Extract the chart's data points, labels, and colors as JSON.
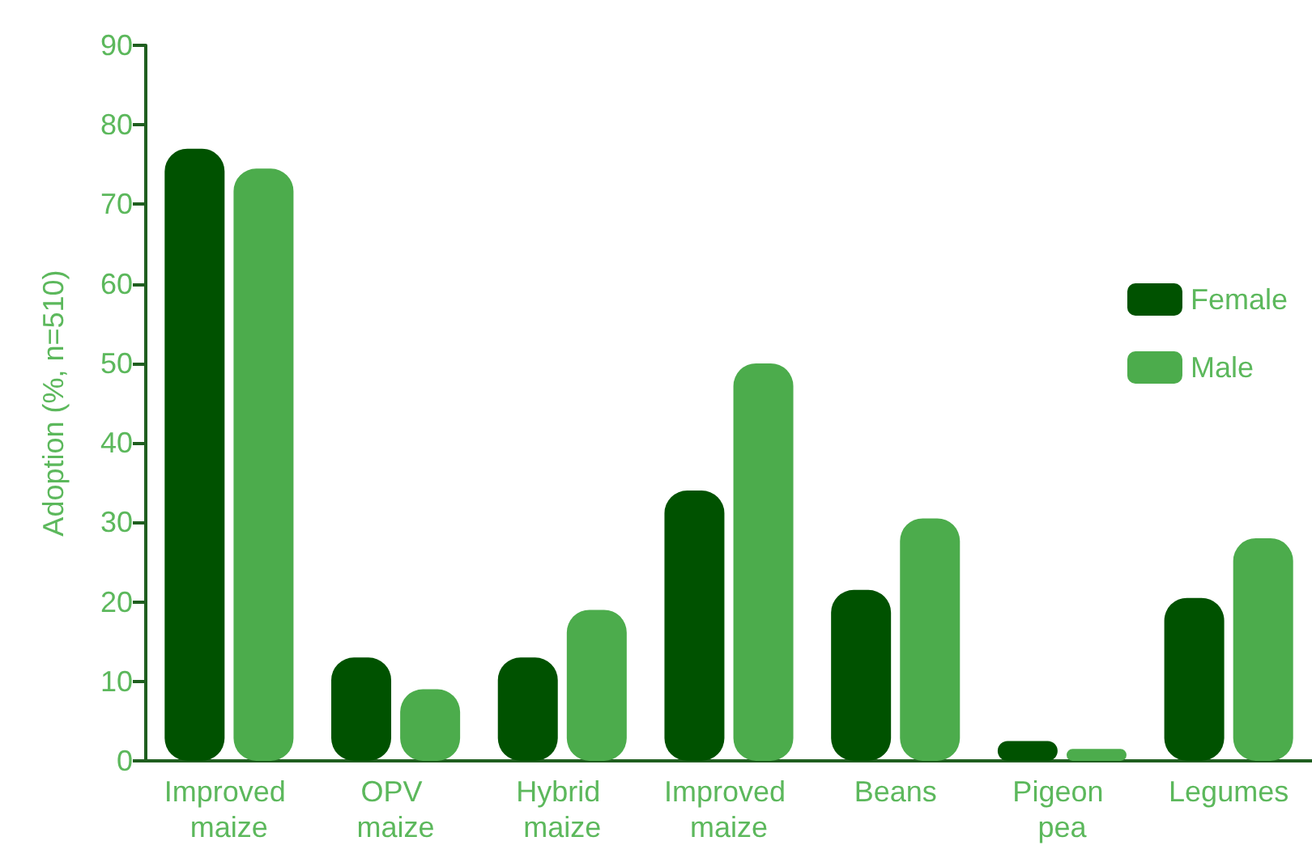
{
  "chart_data": {
    "type": "bar",
    "ylabel": "Adoption (%, n=510)",
    "categories": [
      "Improved maize",
      "OPV maize",
      "Hybrid maize",
      "Improved maize",
      "Beans",
      "Pigeon pea",
      "Legumes"
    ],
    "series": [
      {
        "name": "Female",
        "color": "#005200",
        "values": [
          77,
          13,
          13,
          34,
          21.5,
          2.5,
          20.5
        ]
      },
      {
        "name": "Male",
        "color": "#4cac4c",
        "values": [
          74.5,
          9,
          19,
          50,
          30.5,
          1.5,
          28
        ]
      }
    ],
    "ylim": [
      0,
      90
    ],
    "yticks": [
      0,
      10,
      20,
      30,
      40,
      50,
      60,
      70,
      80,
      90
    ],
    "grid": false,
    "legend": "right"
  }
}
